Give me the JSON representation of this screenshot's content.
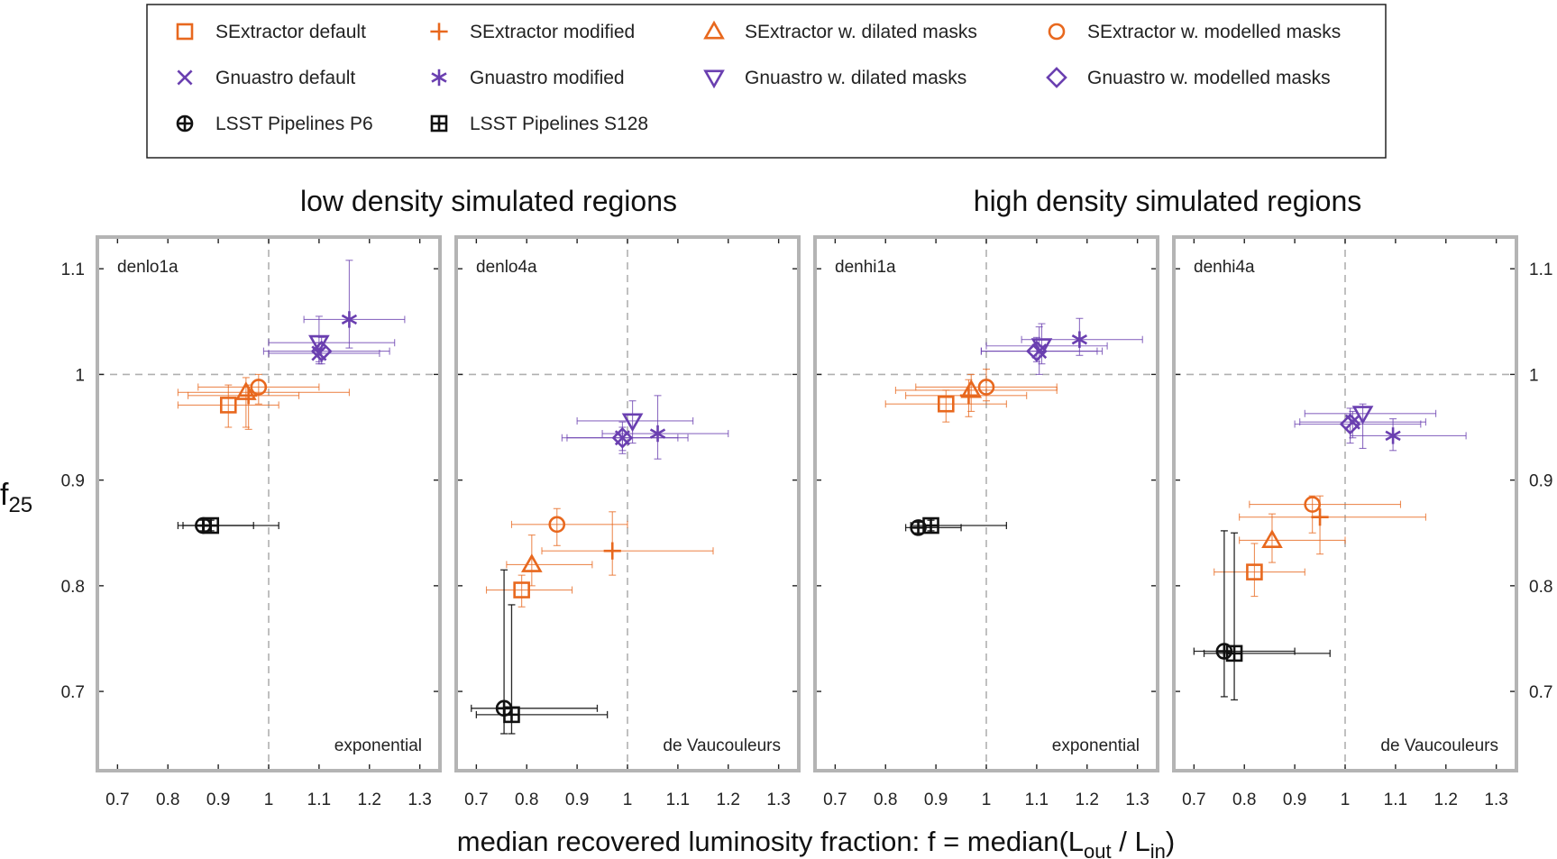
{
  "figure": {
    "titles": [
      "low density simulated regions",
      "high density simulated regions"
    ],
    "xlabel": {
      "main": "median recovered luminosity fraction: f = median(L",
      "sub1": "out",
      "mid": " / L",
      "sub2": "in",
      "end": ")"
    },
    "ylabel": {
      "main": "f",
      "sub": "25"
    }
  },
  "legend": [
    {
      "label": "SExtractor default",
      "marker": "square",
      "color": "#e8681e"
    },
    {
      "label": "SExtractor modified",
      "marker": "plus",
      "color": "#e8681e"
    },
    {
      "label": "SExtractor w. dilated masks",
      "marker": "triangle-up",
      "color": "#e8681e"
    },
    {
      "label": "SExtractor w. modelled masks",
      "marker": "circle",
      "color": "#e8681e"
    },
    {
      "label": "Gnuastro default",
      "marker": "cross",
      "color": "#6a3fb0"
    },
    {
      "label": "Gnuastro modified",
      "marker": "asterisk",
      "color": "#6a3fb0"
    },
    {
      "label": "Gnuastro w. dilated masks",
      "marker": "triangle-down",
      "color": "#6a3fb0"
    },
    {
      "label": "Gnuastro w. modelled masks",
      "marker": "diamond",
      "color": "#6a3fb0"
    },
    {
      "label": "LSST Pipelines P6",
      "marker": "circle-plus",
      "color": "#111111"
    },
    {
      "label": "LSST Pipelines S128",
      "marker": "square-plus",
      "color": "#111111"
    }
  ],
  "chart_data": {
    "type": "scatter",
    "xlim": [
      0.66,
      1.34
    ],
    "ylim": [
      0.625,
      1.13
    ],
    "xticks": [
      0.7,
      0.8,
      0.9,
      1.0,
      1.1,
      1.2,
      1.3
    ],
    "xtick_labels": [
      "0.7",
      "0.8",
      "0.9",
      "1",
      "1.1",
      "1.2",
      "1.3"
    ],
    "yticks": [
      0.7,
      0.8,
      0.9,
      1.0,
      1.1
    ],
    "ytick_labels": [
      "0.7",
      "0.8",
      "0.9",
      "1",
      "1.1"
    ],
    "reference_lines": {
      "x": 1.0,
      "y": 1.0
    },
    "error_bars": "x and y error bars on every point",
    "panels": [
      {
        "name": "denlo1a",
        "profile": "exponential",
        "density": "low",
        "points": [
          {
            "method": "SExtractor default",
            "x": 0.92,
            "y": 0.971,
            "xerr": [
              0.82,
              1.02
            ],
            "yerr": [
              0.95,
              0.99
            ]
          },
          {
            "method": "SExtractor modified",
            "x": 0.96,
            "y": 0.98,
            "xerr": [
              0.84,
              1.06
            ],
            "yerr": [
              0.948,
              0.99
            ]
          },
          {
            "method": "SExtractor w. dilated masks",
            "x": 0.955,
            "y": 0.983,
            "xerr": [
              0.82,
              1.16
            ],
            "yerr": [
              0.95,
              0.997
            ]
          },
          {
            "method": "SExtractor w. modelled masks",
            "x": 0.98,
            "y": 0.988,
            "xerr": [
              0.86,
              1.1
            ],
            "yerr": [
              0.972,
              1.0
            ]
          },
          {
            "method": "Gnuastro w. modelled masks",
            "x": 1.105,
            "y": 1.022,
            "xerr": [
              0.99,
              1.24
            ],
            "yerr": [
              1.01,
              1.035
            ]
          },
          {
            "method": "Gnuastro w. dilated masks",
            "x": 1.1,
            "y": 1.03,
            "xerr": [
              1.0,
              1.25
            ],
            "yerr": [
              1.012,
              1.055
            ]
          },
          {
            "method": "Gnuastro default",
            "x": 1.1,
            "y": 1.02,
            "xerr": [
              1.0,
              1.22
            ],
            "yerr": [
              1.01,
              1.03
            ]
          },
          {
            "method": "Gnuastro modified",
            "x": 1.16,
            "y": 1.052,
            "xerr": [
              1.07,
              1.27
            ],
            "yerr": [
              1.025,
              1.108
            ]
          },
          {
            "method": "LSST Pipelines P6",
            "x": 0.87,
            "y": 0.857,
            "xerr": [
              0.82,
              0.97
            ],
            "yerr": [
              0.852,
              0.862
            ]
          },
          {
            "method": "LSST Pipelines S128",
            "x": 0.885,
            "y": 0.857,
            "xerr": [
              0.83,
              1.02
            ],
            "yerr": [
              0.852,
              0.862
            ]
          }
        ]
      },
      {
        "name": "denlo4a",
        "profile": "de Vaucouleurs",
        "density": "low",
        "points": [
          {
            "method": "SExtractor default",
            "x": 0.79,
            "y": 0.796,
            "xerr": [
              0.72,
              0.89
            ],
            "yerr": [
              0.78,
              0.81
            ]
          },
          {
            "method": "SExtractor w. dilated masks",
            "x": 0.81,
            "y": 0.82,
            "xerr": [
              0.76,
              0.93
            ],
            "yerr": [
              0.8,
              0.848
            ]
          },
          {
            "method": "SExtractor w. modelled masks",
            "x": 0.86,
            "y": 0.858,
            "xerr": [
              0.77,
              1.0
            ],
            "yerr": [
              0.838,
              0.873
            ]
          },
          {
            "method": "SExtractor modified",
            "x": 0.97,
            "y": 0.833,
            "xerr": [
              0.83,
              1.17
            ],
            "yerr": [
              0.81,
              0.87
            ]
          },
          {
            "method": "Gnuastro w. modelled masks",
            "x": 0.99,
            "y": 0.94,
            "xerr": [
              0.87,
              1.1
            ],
            "yerr": [
              0.928,
              0.95
            ]
          },
          {
            "method": "Gnuastro default",
            "x": 0.99,
            "y": 0.94,
            "xerr": [
              0.88,
              1.12
            ],
            "yerr": [
              0.925,
              0.955
            ]
          },
          {
            "method": "Gnuastro w. dilated masks",
            "x": 1.01,
            "y": 0.956,
            "xerr": [
              0.9,
              1.13
            ],
            "yerr": [
              0.935,
              0.975
            ]
          },
          {
            "method": "Gnuastro modified",
            "x": 1.06,
            "y": 0.944,
            "xerr": [
              0.95,
              1.2
            ],
            "yerr": [
              0.92,
              0.98
            ]
          },
          {
            "method": "LSST Pipelines P6",
            "x": 0.755,
            "y": 0.684,
            "xerr": [
              0.69,
              0.94
            ],
            "yerr": [
              0.66,
              0.815
            ]
          },
          {
            "method": "LSST Pipelines S128",
            "x": 0.77,
            "y": 0.678,
            "xerr": [
              0.7,
              0.96
            ],
            "yerr": [
              0.66,
              0.782
            ]
          }
        ]
      },
      {
        "name": "denhi1a",
        "profile": "exponential",
        "density": "high",
        "points": [
          {
            "method": "SExtractor default",
            "x": 0.92,
            "y": 0.972,
            "xerr": [
              0.8,
              1.04
            ],
            "yerr": [
              0.955,
              0.985
            ]
          },
          {
            "method": "SExtractor modified",
            "x": 0.965,
            "y": 0.98,
            "xerr": [
              0.84,
              1.08
            ],
            "yerr": [
              0.96,
              0.995
            ]
          },
          {
            "method": "SExtractor w. dilated masks",
            "x": 0.97,
            "y": 0.985,
            "xerr": [
              0.82,
              1.14
            ],
            "yerr": [
              0.965,
              1.0
            ]
          },
          {
            "method": "SExtractor w. modelled masks",
            "x": 1.0,
            "y": 0.988,
            "xerr": [
              0.86,
              1.14
            ],
            "yerr": [
              0.975,
              1.005
            ]
          },
          {
            "method": "Gnuastro w. modelled masks",
            "x": 1.1,
            "y": 1.022,
            "xerr": [
              0.99,
              1.22
            ],
            "yerr": [
              1.012,
              1.035
            ]
          },
          {
            "method": "Gnuastro default",
            "x": 1.105,
            "y": 1.022,
            "xerr": [
              0.99,
              1.23
            ],
            "yerr": [
              1.0,
              1.045
            ]
          },
          {
            "method": "Gnuastro w. dilated masks",
            "x": 1.11,
            "y": 1.027,
            "xerr": [
              1.0,
              1.24
            ],
            "yerr": [
              1.01,
              1.048
            ]
          },
          {
            "method": "Gnuastro modified",
            "x": 1.185,
            "y": 1.033,
            "xerr": [
              1.07,
              1.31
            ],
            "yerr": [
              1.018,
              1.053
            ]
          },
          {
            "method": "LSST Pipelines P6",
            "x": 0.865,
            "y": 0.855,
            "xerr": [
              0.84,
              0.95
            ],
            "yerr": [
              0.85,
              0.86
            ]
          },
          {
            "method": "LSST Pipelines S128",
            "x": 0.89,
            "y": 0.857,
            "xerr": [
              0.85,
              1.04
            ],
            "yerr": [
              0.852,
              0.862
            ]
          }
        ]
      },
      {
        "name": "denhi4a",
        "profile": "de Vaucouleurs",
        "density": "high",
        "points": [
          {
            "method": "SExtractor default",
            "x": 0.82,
            "y": 0.813,
            "xerr": [
              0.74,
              0.92
            ],
            "yerr": [
              0.79,
              0.84
            ]
          },
          {
            "method": "SExtractor w. dilated masks",
            "x": 0.855,
            "y": 0.843,
            "xerr": [
              0.79,
              1.0
            ],
            "yerr": [
              0.822,
              0.868
            ]
          },
          {
            "method": "SExtractor w. modelled masks",
            "x": 0.935,
            "y": 0.877,
            "xerr": [
              0.81,
              1.11
            ],
            "yerr": [
              0.85,
              0.885
            ]
          },
          {
            "method": "SExtractor modified",
            "x": 0.95,
            "y": 0.865,
            "xerr": [
              0.79,
              1.16
            ],
            "yerr": [
              0.83,
              0.885
            ]
          },
          {
            "method": "Gnuastro w. modelled masks",
            "x": 1.01,
            "y": 0.953,
            "xerr": [
              0.9,
              1.15
            ],
            "yerr": [
              0.935,
              0.968
            ]
          },
          {
            "method": "Gnuastro default",
            "x": 1.015,
            "y": 0.955,
            "xerr": [
              0.91,
              1.16
            ],
            "yerr": [
              0.94,
              0.965
            ]
          },
          {
            "method": "Gnuastro w. dilated masks",
            "x": 1.035,
            "y": 0.963,
            "xerr": [
              0.92,
              1.18
            ],
            "yerr": [
              0.93,
              0.972
            ]
          },
          {
            "method": "Gnuastro modified",
            "x": 1.095,
            "y": 0.942,
            "xerr": [
              1.01,
              1.24
            ],
            "yerr": [
              0.928,
              0.958
            ]
          },
          {
            "method": "LSST Pipelines P6",
            "x": 0.76,
            "y": 0.738,
            "xerr": [
              0.7,
              0.9
            ],
            "yerr": [
              0.695,
              0.852
            ]
          },
          {
            "method": "LSST Pipelines S128",
            "x": 0.78,
            "y": 0.736,
            "xerr": [
              0.72,
              0.97
            ],
            "yerr": [
              0.692,
              0.85
            ]
          }
        ]
      }
    ]
  }
}
